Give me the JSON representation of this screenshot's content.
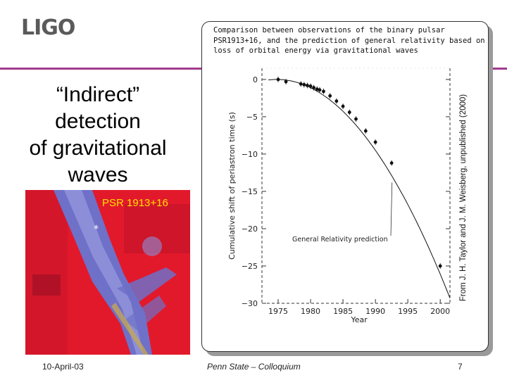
{
  "header": {
    "logo_text": "LIGO"
  },
  "slide": {
    "title_lines": [
      "“Indirect”",
      "detection",
      "of gravitational",
      "waves"
    ],
    "image_label": "PSR 1913+16"
  },
  "figure": {
    "caption_lines": [
      "Comparison between observations of the binary pulsar",
      "PSR1913+16, and the prediction of general relativity based on",
      "loss of orbital energy via gravitational waves"
    ],
    "credit": "From J. H. Taylor and J. M. Weisberg, unpublished (2000)"
  },
  "chart_data": {
    "type": "scatter",
    "xlabel": "Year",
    "ylabel": "Cumulative shift of periastron time (s)",
    "xlim": [
      1972.5,
      2001.5
    ],
    "ylim": [
      -30,
      1.5
    ],
    "x_ticks": [
      1975,
      1980,
      1985,
      1990,
      1995,
      2000
    ],
    "x_tick_labels": [
      "1975",
      "1980",
      "1985",
      "1990",
      "1995",
      "2000"
    ],
    "y_ticks": [
      0,
      -5,
      -10,
      -15,
      -20,
      -25,
      -30
    ],
    "y_tick_labels": [
      "0",
      "−5",
      "−10",
      "−15",
      "−20",
      "−25",
      "−30"
    ],
    "series": [
      {
        "name": "Observations",
        "x": [
          1975.0,
          1976.2,
          1978.5,
          1979.0,
          1979.5,
          1980.0,
          1980.5,
          1981.0,
          1981.4,
          1982.0,
          1983.0,
          1984.0,
          1985.0,
          1986.0,
          1987.0,
          1988.5,
          1990.0,
          1992.5,
          2000.0
        ],
        "y": [
          0.0,
          -0.3,
          -0.6,
          -0.7,
          -0.8,
          -0.9,
          -1.1,
          -1.3,
          -1.4,
          -1.6,
          -2.2,
          -2.9,
          -3.6,
          -4.4,
          -5.3,
          -6.9,
          -8.4,
          -11.2,
          -25.0
        ]
      },
      {
        "name": "General Relativity prediction",
        "curve": "quadratic",
        "x0": 1974.8,
        "coefficient": -0.0411
      }
    ],
    "annotations": [
      "General Relativity prediction"
    ]
  },
  "footer": {
    "date": "10-April-03",
    "venue": "Penn State – Colloquium",
    "page": "7"
  },
  "colors": {
    "accent_rule": "#a23b8f",
    "logo": "#5a5a5a",
    "image_label": "#ffe000",
    "image_background": "#e2192b",
    "image_nebula": "#6f70c8"
  }
}
